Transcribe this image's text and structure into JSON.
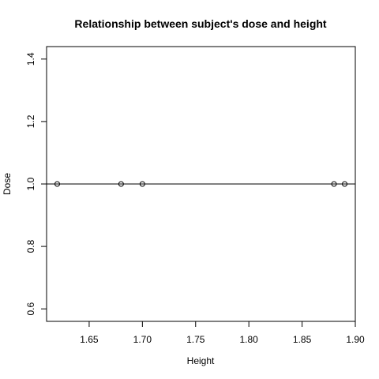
{
  "chart_data": {
    "type": "scatter",
    "title": "Relationship between subject's dose and height",
    "xlabel": "Height",
    "ylabel": "Dose",
    "xlim": [
      1.61,
      1.9
    ],
    "ylim": [
      0.56,
      1.44
    ],
    "x_ticks": [
      1.65,
      1.7,
      1.75,
      1.8,
      1.85,
      1.9
    ],
    "x_tick_labels": [
      "1.65",
      "1.70",
      "1.75",
      "1.80",
      "1.85",
      "1.90"
    ],
    "y_ticks": [
      0.6,
      0.8,
      1.0,
      1.2,
      1.4
    ],
    "y_tick_labels": [
      "0.6",
      "0.8",
      "1.0",
      "1.2",
      "1.4"
    ],
    "points": [
      {
        "x": 1.62,
        "y": 1.0
      },
      {
        "x": 1.68,
        "y": 1.0
      },
      {
        "x": 1.7,
        "y": 1.0
      },
      {
        "x": 1.88,
        "y": 1.0
      },
      {
        "x": 1.89,
        "y": 1.0
      }
    ],
    "reference_line": {
      "type": "horizontal",
      "y": 1.0
    },
    "grid": false,
    "legend": "none"
  }
}
